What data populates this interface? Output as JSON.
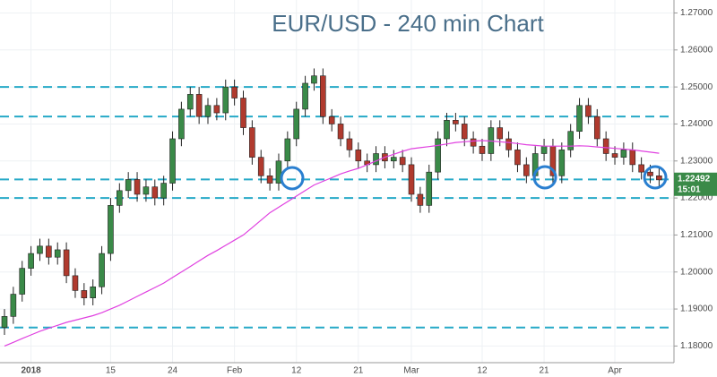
{
  "chart_data": {
    "type": "candlestick",
    "title": "EUR/USD - 240 min Chart",
    "categories": [
      null,
      null,
      null,
      "2018",
      null,
      null,
      null,
      null,
      null,
      null,
      null,
      null,
      "15",
      null,
      null,
      null,
      null,
      null,
      null,
      "24",
      null,
      null,
      null,
      null,
      null,
      null,
      "Feb",
      null,
      null,
      null,
      null,
      null,
      null,
      "12",
      null,
      null,
      null,
      null,
      null,
      null,
      "21",
      null,
      null,
      null,
      null,
      null,
      "Mar",
      null,
      null,
      null,
      null,
      null,
      null,
      null,
      "12",
      null,
      null,
      null,
      null,
      null,
      null,
      "21",
      null,
      null,
      null,
      null,
      null,
      null,
      null,
      "Apr",
      null,
      null,
      null,
      null,
      null
    ],
    "open": [
      1.185,
      1.188,
      1.194,
      1.201,
      1.205,
      1.207,
      1.204,
      1.206,
      1.199,
      1.195,
      1.193,
      1.196,
      1.205,
      1.218,
      1.222,
      1.225,
      1.221,
      1.223,
      1.22,
      1.224,
      1.236,
      1.244,
      1.248,
      1.242,
      1.245,
      1.243,
      1.25,
      1.247,
      1.239,
      1.231,
      1.226,
      1.224,
      1.23,
      1.236,
      1.244,
      1.251,
      1.253,
      1.242,
      1.24,
      1.236,
      1.233,
      1.23,
      1.229,
      1.232,
      1.23,
      1.231,
      1.229,
      1.221,
      1.218,
      1.227,
      1.236,
      1.241,
      1.24,
      1.236,
      1.234,
      1.232,
      1.239,
      1.236,
      1.233,
      1.229,
      1.226,
      1.232,
      1.234,
      1.226,
      1.233,
      1.238,
      1.245,
      1.242,
      1.236,
      1.232,
      1.231,
      1.233,
      1.229,
      1.227,
      1.226
    ],
    "high": [
      1.19,
      1.196,
      1.203,
      1.207,
      1.209,
      1.209,
      1.208,
      1.208,
      1.201,
      1.197,
      1.198,
      1.207,
      1.22,
      1.224,
      1.227,
      1.227,
      1.225,
      1.225,
      1.226,
      1.238,
      1.246,
      1.25,
      1.25,
      1.247,
      1.247,
      1.252,
      1.252,
      1.249,
      1.241,
      1.233,
      1.228,
      1.232,
      1.238,
      1.246,
      1.253,
      1.255,
      1.255,
      1.244,
      1.242,
      1.238,
      1.235,
      1.232,
      1.234,
      1.234,
      1.233,
      1.233,
      1.231,
      1.223,
      1.229,
      1.238,
      1.243,
      1.243,
      1.242,
      1.238,
      1.236,
      1.241,
      1.241,
      1.238,
      1.235,
      1.231,
      1.234,
      1.236,
      1.236,
      1.235,
      1.24,
      1.247,
      1.247,
      1.244,
      1.238,
      1.234,
      1.235,
      1.235,
      1.231,
      1.229,
      1.228
    ],
    "low": [
      1.183,
      1.186,
      1.192,
      1.199,
      1.203,
      1.202,
      1.202,
      1.197,
      1.193,
      1.191,
      1.191,
      1.194,
      1.203,
      1.216,
      1.22,
      1.219,
      1.219,
      1.218,
      1.218,
      1.222,
      1.234,
      1.242,
      1.24,
      1.24,
      1.241,
      1.241,
      1.245,
      1.237,
      1.229,
      1.224,
      1.222,
      1.222,
      1.228,
      1.234,
      1.242,
      1.249,
      1.24,
      1.238,
      1.234,
      1.231,
      1.228,
      1.227,
      1.227,
      1.228,
      1.228,
      1.227,
      1.219,
      1.216,
      1.216,
      1.225,
      1.234,
      1.238,
      1.234,
      1.232,
      1.23,
      1.23,
      1.234,
      1.231,
      1.227,
      1.224,
      1.224,
      1.23,
      1.224,
      1.224,
      1.231,
      1.236,
      1.24,
      1.234,
      1.23,
      1.229,
      1.229,
      1.227,
      1.225,
      1.224,
      1.2229
    ],
    "close": [
      1.188,
      1.194,
      1.201,
      1.205,
      1.207,
      1.204,
      1.206,
      1.199,
      1.195,
      1.193,
      1.196,
      1.205,
      1.218,
      1.222,
      1.225,
      1.221,
      1.223,
      1.22,
      1.224,
      1.236,
      1.244,
      1.248,
      1.242,
      1.245,
      1.243,
      1.25,
      1.247,
      1.239,
      1.231,
      1.226,
      1.224,
      1.23,
      1.236,
      1.244,
      1.251,
      1.253,
      1.242,
      1.24,
      1.236,
      1.233,
      1.23,
      1.229,
      1.232,
      1.23,
      1.231,
      1.229,
      1.221,
      1.218,
      1.227,
      1.236,
      1.241,
      1.24,
      1.236,
      1.234,
      1.232,
      1.239,
      1.236,
      1.233,
      1.229,
      1.226,
      1.232,
      1.234,
      1.226,
      1.233,
      1.238,
      1.245,
      1.242,
      1.236,
      1.232,
      1.231,
      1.233,
      1.229,
      1.227,
      1.226,
      1.2249
    ],
    "up_color": "#3a8a48",
    "down_color": "#b03a2e",
    "moving_average": {
      "color": "#e040e0",
      "values": [
        1.18,
        1.181,
        1.182,
        1.183,
        1.184,
        1.1848,
        1.1856,
        1.1864,
        1.187,
        1.1876,
        1.1882,
        1.189,
        1.19,
        1.191,
        1.1922,
        1.1934,
        1.1946,
        1.1958,
        1.197,
        1.1985,
        1.2,
        1.2015,
        1.203,
        1.2045,
        1.2058,
        1.2072,
        1.2086,
        1.21,
        1.212,
        1.214,
        1.216,
        1.2175,
        1.219,
        1.2205,
        1.222,
        1.2235,
        1.2245,
        1.2255,
        1.2265,
        1.2273,
        1.228,
        1.229,
        1.23,
        1.231,
        1.2318,
        1.2326,
        1.2333,
        1.2336,
        1.2339,
        1.2342,
        1.2346,
        1.235,
        1.2352,
        1.2354,
        1.2355,
        1.2354,
        1.2352,
        1.235,
        1.2347,
        1.2344,
        1.2342,
        1.234,
        1.234,
        1.234,
        1.234,
        1.2341,
        1.234,
        1.2338,
        1.2336,
        1.2334,
        1.2332,
        1.233,
        1.2327,
        1.2324,
        1.2321
      ]
    },
    "hlines": {
      "color": "#26a9c7",
      "values": [
        1.25,
        1.242,
        1.225,
        1.22,
        1.185
      ]
    },
    "last_price": {
      "value": 1.22492,
      "label": "1.22492",
      "color": "#3a8a48"
    },
    "countdown": "15:01",
    "ylim": [
      1.1755,
      1.2735
    ],
    "yticks": [
      {
        "value": 1.18,
        "label": "1.18000"
      },
      {
        "value": 1.19,
        "label": "1.19000"
      },
      {
        "value": 1.2,
        "label": "1.20000"
      },
      {
        "value": 1.21,
        "label": "1.21000"
      },
      {
        "value": 1.22,
        "label": "1.22000"
      },
      {
        "value": 1.23,
        "label": "1.23000"
      },
      {
        "value": 1.24,
        "label": "1.24000"
      },
      {
        "value": 1.25,
        "label": "1.25000"
      },
      {
        "value": 1.26,
        "label": "1.26000"
      },
      {
        "value": 1.27,
        "label": "1.27000"
      }
    ],
    "grid": true
  }
}
